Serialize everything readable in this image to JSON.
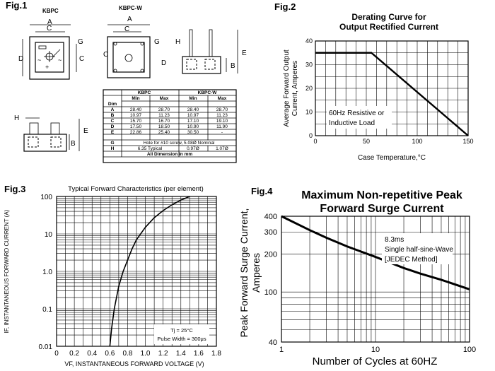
{
  "fig1": {
    "label": "Fig.1",
    "kbpc_title": "KBPC",
    "kbpcw_title": "KBPC-W",
    "dims": {
      "A": "A",
      "B": "B",
      "C": "C",
      "D": "D",
      "E": "E",
      "G": "G",
      "H": "H"
    },
    "table": {
      "header_top": [
        "Dim",
        "KBPC",
        "KBPC-W"
      ],
      "header_sub": [
        "Min",
        "Max",
        "Min",
        "Max"
      ],
      "rows": [
        [
          "A",
          "28.40",
          "28.70",
          "28.40",
          "28.70"
        ],
        [
          "B",
          "10.97",
          "11.23",
          "10.97",
          "11.23"
        ],
        [
          "C",
          "15.70",
          "16.70",
          "17.10",
          "19.10"
        ],
        [
          "D",
          "17.50",
          "18.50",
          "10.90",
          "11.90"
        ],
        [
          "E",
          "22.86",
          "25.40",
          "30.50",
          "-"
        ]
      ],
      "row_g": {
        "dim": "G",
        "text": "Hole for #10 screw, 5.08Ø Nominal"
      },
      "row_h": {
        "dim": "H",
        "text": "6.35 Typical",
        "min": "0.97Ø",
        "max": "1.07Ø"
      },
      "footer": "All Dimension in mm"
    }
  },
  "fig2": {
    "label": "Fig.2",
    "title_line1": "Derating Curve for",
    "title_line2": "Output Rectified Current",
    "ylabel_line1": "Average Forward Output",
    "ylabel_line2": "Current, Amperes",
    "xlabel": "Case Temperature,°C",
    "note_line1": "60Hz Resistive or",
    "note_line2": "Inductive Load",
    "x_ticks": [
      "0",
      "50",
      "100",
      "150"
    ],
    "y_ticks": [
      "0",
      "10",
      "20",
      "30",
      "40"
    ]
  },
  "fig3": {
    "label": "Fig.3",
    "title": "Typical Forward Characteristics (per element)",
    "ylabel": "IF, INSTANTANEOUS FORWARD CURRENT (A)",
    "xlabel": "VF, INSTANTANEOUS FORWARD VOLTAGE (V)",
    "note_line1": "Tj = 25°C",
    "note_line2": "Pulse Width = 300μs",
    "x_ticks": [
      "0",
      "0.2",
      "0.4",
      "0.6",
      "0.8",
      "1.0",
      "1.2",
      "1.4",
      "1.6",
      "1.8"
    ],
    "y_ticks": [
      "0.01",
      "0.1",
      "1.0",
      "10",
      "100"
    ]
  },
  "fig4": {
    "label": "Fig.4",
    "title_line1": "Maximum Non-repetitive Peak",
    "title_line2": "Forward Surge Current",
    "ylabel_line1": "Peak Forward Surge Current,",
    "ylabel_line2": "Amperes",
    "xlabel": "Number of Cycles at 60HZ",
    "note_line1": "8.3ms",
    "note_line2": "Single half-sine-Wave",
    "note_line3": "[JEDEC Method]",
    "x_ticks": [
      "1",
      "10",
      "100"
    ],
    "y_ticks": [
      "40",
      "100",
      "200",
      "300",
      "400"
    ]
  },
  "chart_data": [
    {
      "type": "line",
      "title": "Derating Curve for Output Rectified Current",
      "xlabel": "Case Temperature,°C",
      "ylabel": "Average Forward Output Current, Amperes",
      "xlim": [
        0,
        150
      ],
      "ylim": [
        0,
        40
      ],
      "grid": true,
      "series": [
        {
          "x": [
            0,
            55,
            150
          ],
          "y": [
            35,
            35,
            0
          ]
        }
      ]
    },
    {
      "type": "line",
      "title": "Typical Forward Characteristics (per element)",
      "xlabel": "VF, INSTANTANEOUS FORWARD VOLTAGE (V)",
      "ylabel": "IF, INSTANTANEOUS FORWARD CURRENT (A)",
      "xlim": [
        0,
        1.8
      ],
      "ylim": [
        0.01,
        100
      ],
      "yscale": "log",
      "grid": true,
      "series": [
        {
          "x": [
            0.6,
            0.62,
            0.65,
            0.7,
            0.75,
            0.8,
            0.85,
            0.9,
            1.0,
            1.1,
            1.2,
            1.3,
            1.4,
            1.5
          ],
          "y": [
            0.01,
            0.03,
            0.1,
            0.4,
            1.0,
            2.0,
            4.0,
            7.0,
            15,
            27,
            42,
            60,
            80,
            100
          ]
        }
      ]
    },
    {
      "type": "line",
      "title": "Maximum Non-repetitive Peak Forward Surge Current",
      "xlabel": "Number of Cycles at 60HZ",
      "ylabel": "Peak Forward Surge Current, Amperes",
      "xlim": [
        1,
        100
      ],
      "ylim": [
        40,
        400
      ],
      "xscale": "log",
      "yscale": "log",
      "grid": true,
      "series": [
        {
          "x": [
            1,
            2,
            3,
            5,
            10,
            20,
            30,
            50,
            100
          ],
          "y": [
            400,
            310,
            270,
            230,
            190,
            155,
            140,
            125,
            105
          ]
        }
      ]
    }
  ]
}
